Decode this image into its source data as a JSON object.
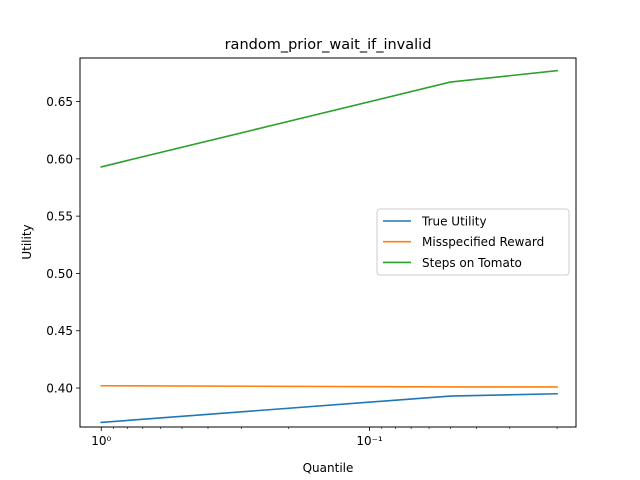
{
  "chart_data": {
    "type": "line",
    "title": "random_prior_wait_if_invalid",
    "xlabel": "Quantile",
    "ylabel": "Utility",
    "xscale": "log",
    "xaxis_inverted": true,
    "xlim": [
      1.2,
      0.017
    ],
    "ylim": [
      0.366,
      0.688
    ],
    "x_tick_labels": [
      {
        "value": 1.0,
        "label": "10⁰"
      },
      {
        "value": 0.1,
        "label": "10⁻¹"
      }
    ],
    "y_ticks": [
      0.4,
      0.45,
      0.5,
      0.55,
      0.6,
      0.65
    ],
    "y_tick_labels": [
      "0.40",
      "0.45",
      "0.50",
      "0.55",
      "0.60",
      "0.65"
    ],
    "x": [
      1.0,
      0.05,
      0.02
    ],
    "series": [
      {
        "name": "True Utility",
        "color": "#1f77b4",
        "values": [
          0.37,
          0.393,
          0.395
        ]
      },
      {
        "name": "Misspecified Reward",
        "color": "#ff7f0e",
        "values": [
          0.402,
          0.401,
          0.401
        ]
      },
      {
        "name": "Steps on Tomato",
        "color": "#2ca02c",
        "values": [
          0.593,
          0.667,
          0.677
        ]
      }
    ],
    "legend": {
      "position": "center-right"
    },
    "grid": false
  }
}
